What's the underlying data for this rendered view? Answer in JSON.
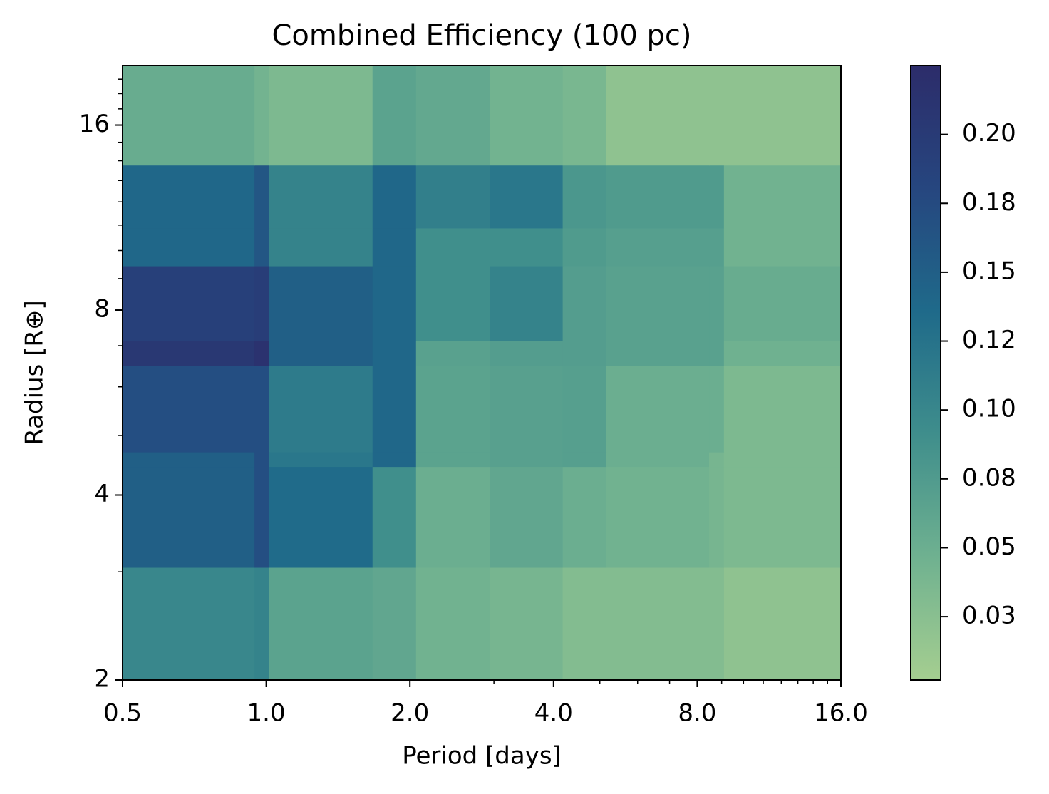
{
  "chart_data": {
    "type": "heatmap",
    "title": "Combined Efficiency (100 pc)",
    "xlabel": "Period [days]",
    "ylabel": "Radius [R⊕]",
    "xscale": "log",
    "yscale": "log",
    "xlim": [
      0.5,
      16
    ],
    "ylim": [
      2,
      20
    ],
    "xticks": [
      0.5,
      {
        "value": 1,
        "label": "1.0"
      },
      {
        "value": 2,
        "label": "2.0"
      },
      {
        "value": 4,
        "label": "4.0"
      },
      {
        "value": 8,
        "label": "8.0"
      },
      {
        "value": 16,
        "label": "16.0"
      }
    ],
    "yticks": [
      2,
      4,
      8,
      16
    ],
    "xminorticks": [
      3,
      5,
      6,
      7,
      9,
      10,
      11,
      12,
      13,
      14,
      15
    ],
    "yminorticks": [
      3,
      5,
      6,
      7,
      9,
      10,
      11,
      12,
      13,
      14,
      15,
      17,
      18,
      19
    ],
    "xedges": [
      0.5,
      0.945,
      1.015,
      1.67,
      2.06,
      2.94,
      4.18,
      5.16,
      8.47,
      9.1,
      16
    ],
    "yedges": [
      2,
      3.05,
      4.45,
      4.7,
      6.49,
      7.13,
      9.44,
      10.88,
      13.77,
      20
    ],
    "values": [
      [
        0.1,
        0.105,
        0.065,
        0.06,
        0.045,
        0.04,
        0.03,
        0.03,
        0.03,
        0.02
      ],
      [
        0.15,
        0.17,
        0.135,
        0.09,
        0.05,
        0.06,
        0.05,
        0.045,
        0.04,
        0.035
      ],
      [
        0.15,
        0.17,
        0.12,
        0.14,
        0.065,
        0.068,
        0.07,
        0.05,
        0.04,
        0.035
      ],
      [
        0.17,
        0.17,
        0.115,
        0.14,
        0.065,
        0.068,
        0.07,
        0.05,
        0.05,
        0.035
      ],
      [
        0.205,
        0.215,
        0.15,
        0.14,
        0.067,
        0.072,
        0.072,
        0.067,
        0.067,
        0.047
      ],
      [
        0.19,
        0.195,
        0.15,
        0.14,
        0.09,
        0.105,
        0.072,
        0.067,
        0.067,
        0.053
      ],
      [
        0.14,
        0.16,
        0.105,
        0.14,
        0.09,
        0.09,
        0.075,
        0.07,
        0.07,
        0.045
      ],
      [
        0.14,
        0.16,
        0.105,
        0.14,
        0.11,
        0.12,
        0.08,
        0.075,
        0.075,
        0.045
      ],
      [
        0.053,
        0.043,
        0.035,
        0.065,
        0.058,
        0.044,
        0.038,
        0.02,
        0.02,
        0.02
      ]
    ],
    "clim": [
      0.002,
      0.225
    ],
    "cticks": [
      {
        "value": 0.025,
        "label": "0.03"
      },
      0.05,
      {
        "value": 0.075,
        "label": "0.08"
      },
      {
        "value": 0.1,
        "label": "0.10"
      },
      {
        "value": 0.125,
        "label": "0.12"
      },
      0.15,
      {
        "value": 0.175,
        "label": "0.18"
      },
      {
        "value": 0.2,
        "label": "0.20"
      }
    ],
    "colormap": [
      "#a5ce90",
      "#6fb190",
      "#3f8e8c",
      "#1f6a8a",
      "#26467f",
      "#2c2c6a"
    ]
  }
}
